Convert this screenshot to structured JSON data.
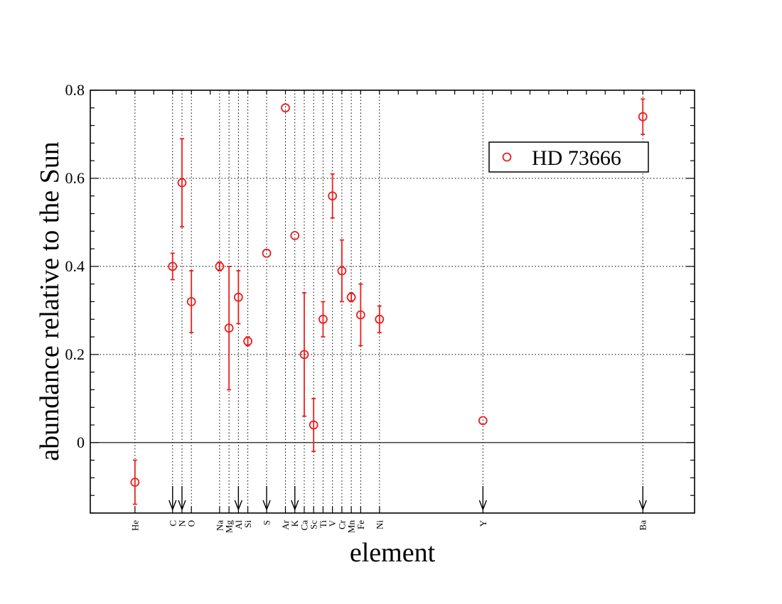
{
  "chart_data": {
    "type": "scatter",
    "xlabel": "element",
    "ylabel": "abundance relative to the Sun",
    "ylim": [
      -0.16,
      0.8
    ],
    "y_ticks": [
      "0",
      "0.2",
      "0.4",
      "0.6",
      "0.8"
    ],
    "y_tick_values": [
      0,
      0.2,
      0.4,
      0.6,
      0.8
    ],
    "grid": "dotted",
    "legend_placement": "top-right",
    "x_ticks": [
      {
        "label": "He",
        "z": 2
      },
      {
        "label": "C",
        "z": 6
      },
      {
        "label": "N",
        "z": 7
      },
      {
        "label": "O",
        "z": 8
      },
      {
        "label": "Na",
        "z": 11
      },
      {
        "label": "Mg",
        "z": 12
      },
      {
        "label": "Al",
        "z": 13
      },
      {
        "label": "Si",
        "z": 14
      },
      {
        "label": "S",
        "z": 16
      },
      {
        "label": "Ar",
        "z": 18
      },
      {
        "label": "K",
        "z": 19
      },
      {
        "label": "Ca",
        "z": 20
      },
      {
        "label": "Sc",
        "z": 21
      },
      {
        "label": "Ti",
        "z": 22
      },
      {
        "label": "V",
        "z": 23
      },
      {
        "label": "Cr",
        "z": 24
      },
      {
        "label": "Mn",
        "z": 25
      },
      {
        "label": "Fe",
        "z": 26
      },
      {
        "label": "Ni",
        "z": 28
      },
      {
        "label": "Y",
        "z": 39
      },
      {
        "label": "Ba",
        "z": 56
      }
    ],
    "series": [
      {
        "name": "HD 73666",
        "color": "#e8201e",
        "points": [
          {
            "element": "He",
            "z": 2,
            "y": -0.09,
            "err": 0.05
          },
          {
            "element": "C",
            "z": 6,
            "y": 0.4,
            "err": 0.03
          },
          {
            "element": "N",
            "z": 7,
            "y": 0.59,
            "err": 0.1
          },
          {
            "element": "O",
            "z": 8,
            "y": 0.32,
            "err": 0.07
          },
          {
            "element": "Na",
            "z": 11,
            "y": 0.4,
            "err": 0.01
          },
          {
            "element": "Mg",
            "z": 12,
            "y": 0.26,
            "err": 0.14
          },
          {
            "element": "Al",
            "z": 13,
            "y": 0.33,
            "err": 0.06
          },
          {
            "element": "Si",
            "z": 14,
            "y": 0.23,
            "err": 0.01
          },
          {
            "element": "S",
            "z": 16,
            "y": 0.43,
            "err": 0
          },
          {
            "element": "Ar",
            "z": 18,
            "y": 0.76,
            "err": 0
          },
          {
            "element": "K",
            "z": 19,
            "y": 0.47,
            "err": 0
          },
          {
            "element": "Ca",
            "z": 20,
            "y": 0.2,
            "err": 0.14
          },
          {
            "element": "Sc",
            "z": 21,
            "y": 0.04,
            "err": 0.06
          },
          {
            "element": "Ti",
            "z": 22,
            "y": 0.28,
            "err": 0.04
          },
          {
            "element": "V",
            "z": 23,
            "y": 0.56,
            "err": 0.05
          },
          {
            "element": "Cr",
            "z": 24,
            "y": 0.39,
            "err": 0.07
          },
          {
            "element": "Mn",
            "z": 25,
            "y": 0.33,
            "err": 0.01
          },
          {
            "element": "Fe",
            "z": 26,
            "y": 0.29,
            "err": 0.07
          },
          {
            "element": "Ni",
            "z": 28,
            "y": 0.28,
            "err": 0.03
          },
          {
            "element": "Y",
            "z": 39,
            "y": 0.05,
            "err": 0
          },
          {
            "element": "Ba",
            "z": 56,
            "y": 0.74,
            "err": 0.04
          }
        ]
      }
    ],
    "upper_limit_markers": [
      "C",
      "N",
      "Al",
      "S",
      "K",
      "Y",
      "Ba"
    ]
  }
}
